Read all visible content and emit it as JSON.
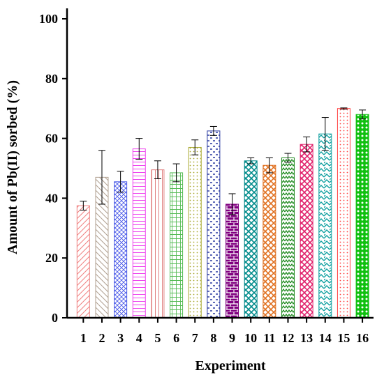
{
  "chart_data": {
    "type": "bar",
    "title": "",
    "xlabel": "Experiment",
    "ylabel": "Amount of Pb(II) sorbed (%)",
    "ylim": [
      0,
      100
    ],
    "yticks": [
      "0",
      "20",
      "40",
      "60",
      "80",
      "100"
    ],
    "grid": false,
    "categories": [
      "1",
      "2",
      "3",
      "4",
      "5",
      "6",
      "7",
      "8",
      "9",
      "10",
      "11",
      "12",
      "13",
      "14",
      "15",
      "16"
    ],
    "values": [
      37.5,
      47.0,
      45.5,
      56.5,
      49.5,
      48.5,
      57.0,
      62.5,
      38.0,
      52.5,
      51.0,
      53.5,
      58.0,
      61.5,
      70.0,
      68.0
    ],
    "errors": [
      1.5,
      9.0,
      3.5,
      3.5,
      3.0,
      3.0,
      2.5,
      1.5,
      3.5,
      1.0,
      2.5,
      1.5,
      2.5,
      5.5,
      0.2,
      1.5
    ],
    "bar_colors": [
      "#f08080",
      "#b0a090",
      "#4a5ae8",
      "#ee44ee",
      "#e08080",
      "#55bb55",
      "#a8a830",
      "#2a3aa0",
      "#800080",
      "#008b8b",
      "#e07020",
      "#228b22",
      "#e0206a",
      "#10a0a0",
      "#ff4040",
      "#10c010"
    ],
    "patterns": [
      "diag-up",
      "diag-down",
      "crosshatch",
      "hlines",
      "vlines",
      "grid",
      "dots",
      "dashes",
      "bricks",
      "diamond",
      "diamond",
      "wave",
      "diamond",
      "zigzag",
      "dots",
      "checker"
    ]
  }
}
